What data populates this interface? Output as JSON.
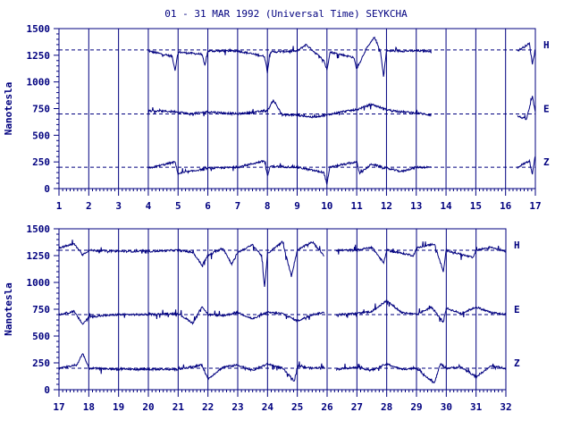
{
  "title": "01 - 31 MAR 1992 (Universal Time) SEYKCHA",
  "colors": {
    "ink": "#00007f",
    "background": "#ffffff"
  },
  "chart_data": [
    {
      "type": "line",
      "panel": "top",
      "ylabel": "Nanotesla",
      "xlim": [
        1,
        17
      ],
      "ylim": [
        0,
        1500
      ],
      "x_ticks": [
        "1",
        "2",
        "3",
        "4",
        "5",
        "6",
        "7",
        "8",
        "9",
        "10",
        "11",
        "12",
        "13",
        "14",
        "15",
        "16",
        "17"
      ],
      "y_ticks": [
        "0",
        "250",
        "500",
        "750",
        "1000",
        "1250",
        "1500"
      ],
      "grid": "vertical lines at each day",
      "baselines": [
        1300,
        700,
        200
      ],
      "component_labels": [
        "H",
        "E",
        "Z"
      ],
      "series": [
        {
          "name": "H",
          "base": 1300,
          "segments": [
            [
              4.0,
              13.5
            ],
            [
              16.4,
              17.0
            ]
          ],
          "points": [
            [
              4.0,
              1290
            ],
            [
              4.8,
              1240
            ],
            [
              4.9,
              1110
            ],
            [
              5.0,
              1280
            ],
            [
              5.8,
              1260
            ],
            [
              5.9,
              1150
            ],
            [
              6.0,
              1290
            ],
            [
              7.0,
              1290
            ],
            [
              7.9,
              1240
            ],
            [
              8.0,
              1100
            ],
            [
              8.1,
              1280
            ],
            [
              9.0,
              1290
            ],
            [
              9.3,
              1350
            ],
            [
              9.9,
              1200
            ],
            [
              10.0,
              1110
            ],
            [
              10.1,
              1280
            ],
            [
              10.9,
              1230
            ],
            [
              11.0,
              1120
            ],
            [
              11.3,
              1300
            ],
            [
              11.6,
              1420
            ],
            [
              11.8,
              1280
            ],
            [
              11.9,
              1050
            ],
            [
              12.0,
              1290
            ],
            [
              13.0,
              1290
            ],
            [
              13.5,
              1290
            ],
            [
              16.4,
              1290
            ],
            [
              16.8,
              1360
            ],
            [
              16.9,
              1170
            ],
            [
              17.0,
              1300
            ]
          ]
        },
        {
          "name": "E",
          "base": 700,
          "segments": [
            [
              4.0,
              13.5
            ],
            [
              16.4,
              17.0
            ]
          ],
          "points": [
            [
              4.0,
              730
            ],
            [
              5.0,
              720
            ],
            [
              5.4,
              700
            ],
            [
              6.0,
              720
            ],
            [
              7.0,
              700
            ],
            [
              8.0,
              730
            ],
            [
              8.2,
              830
            ],
            [
              8.5,
              690
            ],
            [
              9.0,
              690
            ],
            [
              9.5,
              670
            ],
            [
              10.0,
              690
            ],
            [
              10.5,
              720
            ],
            [
              11.0,
              740
            ],
            [
              11.5,
              790
            ],
            [
              12.0,
              740
            ],
            [
              12.5,
              720
            ],
            [
              13.0,
              710
            ],
            [
              13.5,
              690
            ],
            [
              16.4,
              680
            ],
            [
              16.7,
              650
            ],
            [
              16.9,
              860
            ],
            [
              17.0,
              720
            ]
          ]
        },
        {
          "name": "Z",
          "base": 200,
          "segments": [
            [
              4.0,
              13.5
            ],
            [
              16.4,
              17.0
            ]
          ],
          "points": [
            [
              4.0,
              190
            ],
            [
              4.9,
              250
            ],
            [
              5.0,
              140
            ],
            [
              6.0,
              190
            ],
            [
              7.0,
              200
            ],
            [
              7.9,
              260
            ],
            [
              8.0,
              120
            ],
            [
              8.1,
              210
            ],
            [
              9.0,
              200
            ],
            [
              9.9,
              150
            ],
            [
              10.0,
              40
            ],
            [
              10.1,
              200
            ],
            [
              11.0,
              250
            ],
            [
              11.1,
              140
            ],
            [
              11.5,
              230
            ],
            [
              12.0,
              190
            ],
            [
              12.5,
              160
            ],
            [
              13.0,
              200
            ],
            [
              13.5,
              200
            ],
            [
              16.4,
              200
            ],
            [
              16.8,
              260
            ],
            [
              16.9,
              140
            ],
            [
              17.0,
              310
            ]
          ]
        }
      ]
    },
    {
      "type": "line",
      "panel": "bottom",
      "ylabel": "Nanotesla",
      "xlim": [
        17,
        32
      ],
      "ylim": [
        0,
        1500
      ],
      "x_ticks": [
        "17",
        "18",
        "19",
        "20",
        "21",
        "22",
        "23",
        "24",
        "25",
        "26",
        "27",
        "28",
        "29",
        "30",
        "31",
        "32"
      ],
      "y_ticks": [
        "0",
        "250",
        "500",
        "750",
        "1000",
        "1250",
        "1500"
      ],
      "grid": "vertical lines at each day",
      "baselines": [
        1300,
        700,
        200
      ],
      "component_labels": [
        "H",
        "E",
        "Z"
      ],
      "series": [
        {
          "name": "H",
          "base": 1300,
          "segments": [
            [
              17.0,
              25.9
            ],
            [
              26.3,
              32.0
            ]
          ],
          "points": [
            [
              17.0,
              1320
            ],
            [
              17.5,
              1360
            ],
            [
              17.8,
              1260
            ],
            [
              18.0,
              1300
            ],
            [
              19.0,
              1290
            ],
            [
              20.0,
              1290
            ],
            [
              21.0,
              1300
            ],
            [
              21.5,
              1280
            ],
            [
              21.8,
              1160
            ],
            [
              22.0,
              1250
            ],
            [
              22.5,
              1320
            ],
            [
              22.8,
              1170
            ],
            [
              23.0,
              1280
            ],
            [
              23.5,
              1350
            ],
            [
              23.8,
              1250
            ],
            [
              23.9,
              950
            ],
            [
              24.0,
              1270
            ],
            [
              24.5,
              1380
            ],
            [
              24.8,
              1060
            ],
            [
              25.0,
              1300
            ],
            [
              25.5,
              1380
            ],
            [
              25.9,
              1250
            ],
            [
              26.3,
              1300
            ],
            [
              27.0,
              1300
            ],
            [
              27.5,
              1330
            ],
            [
              27.9,
              1180
            ],
            [
              28.0,
              1300
            ],
            [
              28.9,
              1250
            ],
            [
              29.0,
              1320
            ],
            [
              29.6,
              1360
            ],
            [
              29.9,
              1100
            ],
            [
              30.0,
              1300
            ],
            [
              30.9,
              1230
            ],
            [
              31.0,
              1300
            ],
            [
              31.5,
              1330
            ],
            [
              32.0,
              1290
            ]
          ]
        },
        {
          "name": "E",
          "base": 700,
          "segments": [
            [
              17.0,
              25.9
            ],
            [
              26.3,
              32.0
            ]
          ],
          "points": [
            [
              17.0,
              700
            ],
            [
              17.5,
              730
            ],
            [
              17.8,
              610
            ],
            [
              18.0,
              680
            ],
            [
              19.0,
              700
            ],
            [
              20.0,
              700
            ],
            [
              21.0,
              710
            ],
            [
              21.5,
              620
            ],
            [
              21.8,
              780
            ],
            [
              22.0,
              700
            ],
            [
              22.5,
              690
            ],
            [
              23.0,
              720
            ],
            [
              23.5,
              660
            ],
            [
              24.0,
              720
            ],
            [
              24.5,
              710
            ],
            [
              25.0,
              640
            ],
            [
              25.5,
              700
            ],
            [
              25.9,
              720
            ],
            [
              26.3,
              700
            ],
            [
              27.0,
              710
            ],
            [
              27.5,
              730
            ],
            [
              28.0,
              830
            ],
            [
              28.5,
              720
            ],
            [
              29.0,
              700
            ],
            [
              29.5,
              770
            ],
            [
              29.9,
              630
            ],
            [
              30.0,
              760
            ],
            [
              30.5,
              710
            ],
            [
              31.0,
              770
            ],
            [
              31.5,
              720
            ],
            [
              32.0,
              700
            ]
          ]
        },
        {
          "name": "Z",
          "base": 200,
          "segments": [
            [
              17.0,
              25.9
            ],
            [
              26.3,
              32.0
            ]
          ],
          "points": [
            [
              17.0,
              200
            ],
            [
              17.6,
              230
            ],
            [
              17.8,
              340
            ],
            [
              18.0,
              200
            ],
            [
              19.0,
              190
            ],
            [
              20.0,
              190
            ],
            [
              21.0,
              190
            ],
            [
              21.8,
              230
            ],
            [
              22.0,
              100
            ],
            [
              22.5,
              210
            ],
            [
              23.0,
              230
            ],
            [
              23.5,
              180
            ],
            [
              24.0,
              240
            ],
            [
              24.5,
              200
            ],
            [
              24.9,
              80
            ],
            [
              25.0,
              220
            ],
            [
              25.5,
              200
            ],
            [
              25.9,
              210
            ],
            [
              26.3,
              190
            ],
            [
              27.0,
              210
            ],
            [
              27.5,
              180
            ],
            [
              28.0,
              240
            ],
            [
              28.5,
              190
            ],
            [
              29.0,
              200
            ],
            [
              29.6,
              60
            ],
            [
              29.8,
              240
            ],
            [
              30.0,
              200
            ],
            [
              30.5,
              210
            ],
            [
              31.0,
              120
            ],
            [
              31.5,
              220
            ],
            [
              32.0,
              200
            ]
          ]
        }
      ]
    }
  ]
}
